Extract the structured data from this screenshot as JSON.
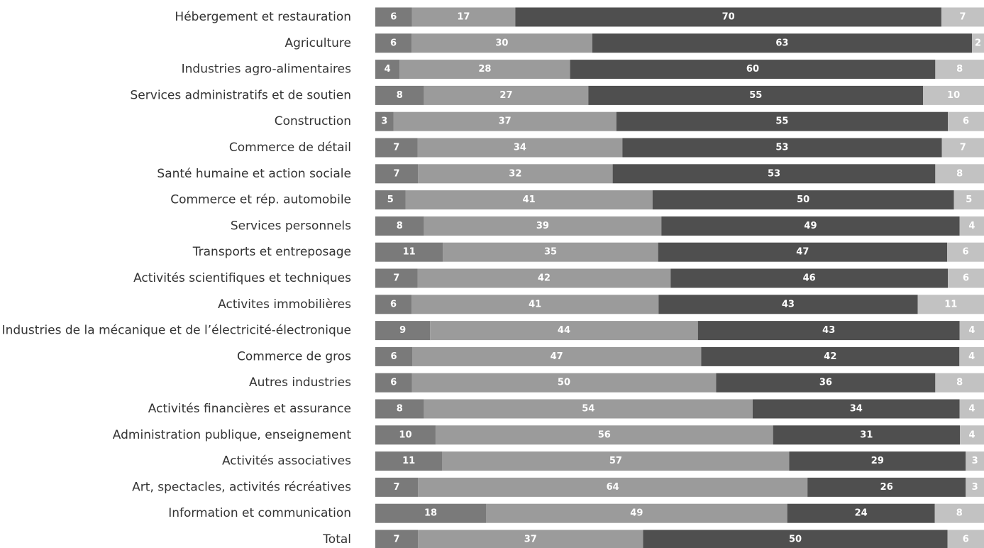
{
  "chart_data": {
    "type": "bar",
    "orientation": "horizontal",
    "stacked": true,
    "grid": false,
    "legend": "none",
    "categories": [
      "Hébergement et restauration",
      "Agriculture",
      "Industries agro-alimentaires",
      "Services administratifs et de soutien",
      "Construction",
      "Commerce de détail",
      "Santé humaine et action sociale",
      "Commerce et rép. automobile",
      "Services personnels",
      "Transports et entreposage",
      "Activités scientifiques et techniques",
      "Activites immobilières",
      "Industries de la mécanique et de l’électricité-électronique",
      "Commerce de gros",
      "Autres industries",
      "Activités financières et assurance",
      "Administration publique, enseignement",
      "Activités associatives",
      "Art, spectacles, activités récréatives",
      "Information et communication",
      "Total"
    ],
    "series": [
      {
        "color": "#7a7a7a",
        "values": [
          6,
          6,
          4,
          8,
          3,
          7,
          7,
          5,
          8,
          11,
          7,
          6,
          9,
          6,
          6,
          8,
          10,
          11,
          7,
          18,
          7
        ]
      },
      {
        "color": "#9b9b9b",
        "values": [
          17,
          30,
          28,
          27,
          37,
          34,
          32,
          41,
          39,
          35,
          42,
          41,
          44,
          47,
          50,
          54,
          56,
          57,
          64,
          49,
          37
        ]
      },
      {
        "color": "#4f4f4f",
        "values": [
          70,
          63,
          60,
          55,
          55,
          53,
          53,
          50,
          49,
          47,
          46,
          43,
          43,
          42,
          36,
          34,
          31,
          29,
          26,
          24,
          50
        ]
      },
      {
        "color": "#c2c2c2",
        "values": [
          7,
          2,
          8,
          10,
          6,
          7,
          8,
          5,
          4,
          6,
          6,
          11,
          4,
          4,
          8,
          4,
          4,
          3,
          3,
          8,
          6
        ]
      }
    ]
  }
}
